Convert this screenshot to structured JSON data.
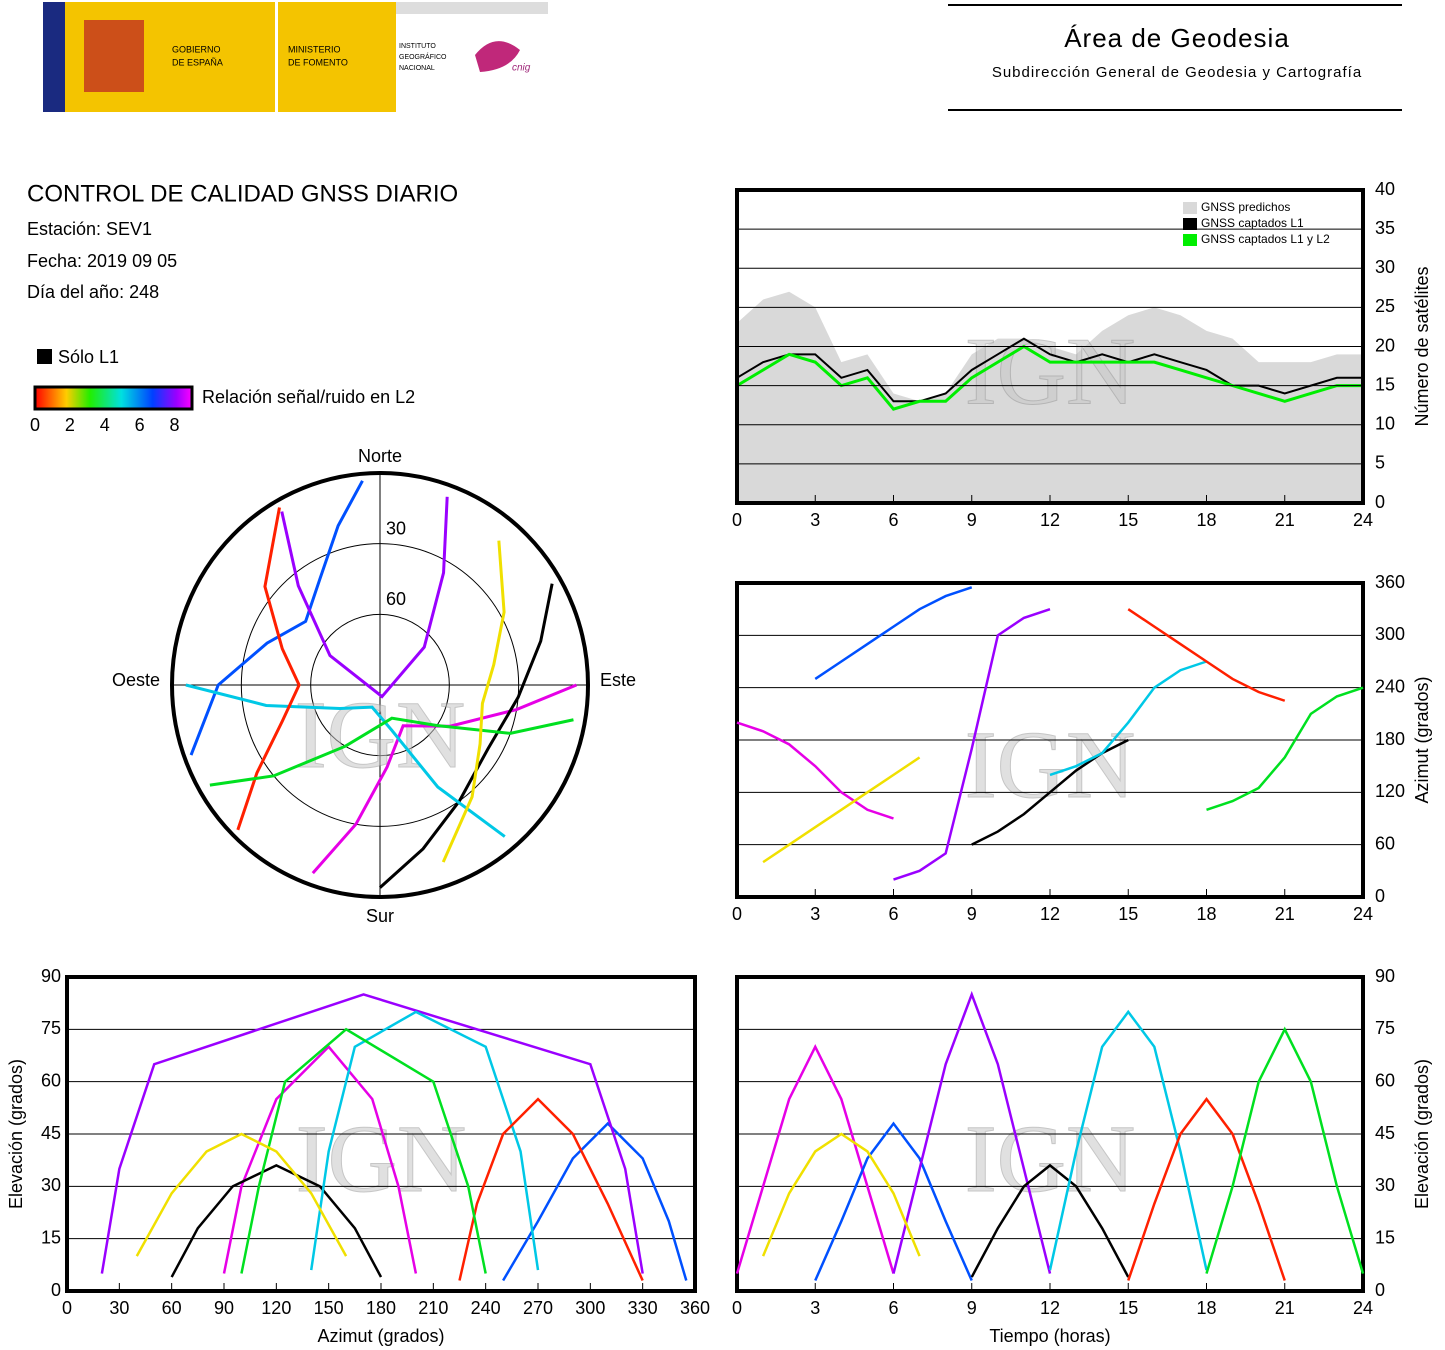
{
  "header": {
    "org_lines": [
      "GOBIERNO",
      "DE ESPAÑA",
      "MINISTERIO",
      "DE FOMENTO",
      "INSTITUTO",
      "GEOGRÁFICO",
      "NACIONAL",
      "cnig"
    ],
    "area_title": "Área de Geodesia",
    "area_subtitle": "Subdirección General de Geodesia y Cartografía"
  },
  "report": {
    "title": "CONTROL DE CALIDAD GNSS DIARIO",
    "station": "Estación: SEV1",
    "date": "Fecha: 2019 09 05",
    "doy": "Día del año: 248"
  },
  "legend": {
    "l1_only": "Sólo L1",
    "snr_label": "Relación señal/ruido en L2",
    "snr_range": [
      0,
      9
    ],
    "snr_ticks": [
      0,
      2,
      4,
      6,
      8
    ]
  },
  "tracks": [
    {
      "color": "#e600e6",
      "time": [
        0,
        1,
        2,
        3,
        4,
        5,
        6
      ],
      "azimuth": [
        200,
        190,
        175,
        150,
        120,
        100,
        90
      ],
      "elevation": [
        5,
        30,
        55,
        70,
        55,
        30,
        5
      ]
    },
    {
      "color": "#0050ff",
      "time": [
        3,
        4,
        5,
        6,
        7,
        8,
        9
      ],
      "azimuth": [
        250,
        270,
        290,
        310,
        330,
        345,
        355
      ],
      "elevation": [
        3,
        20,
        38,
        48,
        38,
        20,
        3
      ]
    },
    {
      "color": "#9a00ff",
      "time": [
        6,
        7,
        8,
        9,
        10,
        11,
        12
      ],
      "azimuth": [
        20,
        30,
        50,
        170,
        300,
        320,
        330
      ],
      "elevation": [
        5,
        35,
        65,
        85,
        65,
        35,
        5
      ]
    },
    {
      "color": "#000000",
      "time": [
        9,
        10,
        11,
        12,
        13,
        14,
        15
      ],
      "azimuth": [
        60,
        75,
        95,
        120,
        145,
        165,
        180
      ],
      "elevation": [
        4,
        18,
        30,
        36,
        30,
        18,
        4
      ]
    },
    {
      "color": "#00c8e6",
      "time": [
        12,
        13,
        14,
        15,
        16,
        17,
        18
      ],
      "azimuth": [
        140,
        150,
        165,
        200,
        240,
        260,
        270
      ],
      "elevation": [
        6,
        40,
        70,
        80,
        70,
        40,
        6
      ]
    },
    {
      "color": "#ff2000",
      "time": [
        15,
        16,
        17,
        18,
        19,
        20,
        21
      ],
      "azimuth": [
        330,
        310,
        290,
        270,
        250,
        235,
        225
      ],
      "elevation": [
        3,
        25,
        45,
        55,
        45,
        25,
        3
      ]
    },
    {
      "color": "#00e020",
      "time": [
        18,
        19,
        20,
        21,
        22,
        23,
        24
      ],
      "azimuth": [
        100,
        110,
        125,
        160,
        210,
        230,
        240
      ],
      "elevation": [
        5,
        30,
        60,
        75,
        60,
        30,
        5
      ]
    },
    {
      "color": "#f0e000",
      "time": [
        1,
        2,
        3,
        4,
        5,
        6,
        7
      ],
      "azimuth": [
        40,
        60,
        80,
        100,
        120,
        140,
        160
      ],
      "elevation": [
        10,
        28,
        40,
        45,
        40,
        28,
        10
      ]
    }
  ],
  "chart_data": [
    {
      "type": "polar",
      "labels": {
        "north": "Norte",
        "south": "Sur",
        "east": "Este",
        "west": "Oeste"
      },
      "rings": [
        30,
        60
      ],
      "watermark": "IGN"
    },
    {
      "type": "count",
      "x": [
        0,
        1,
        2,
        3,
        4,
        5,
        6,
        7,
        8,
        9,
        10,
        11,
        12,
        13,
        14,
        15,
        16,
        17,
        18,
        19,
        20,
        21,
        22,
        23,
        24
      ],
      "series": [
        {
          "name": "GNSS predichos",
          "color": "#d9d9d9",
          "values": [
            23,
            26,
            27,
            25,
            18,
            19,
            14,
            13,
            14,
            19,
            21,
            21,
            20,
            19,
            22,
            24,
            25,
            24,
            22,
            21,
            18,
            18,
            18,
            19,
            19
          ]
        },
        {
          "name": "GNSS captados L1",
          "color": "#000000",
          "values": [
            16,
            18,
            19,
            19,
            16,
            17,
            13,
            13,
            14,
            17,
            19,
            21,
            19,
            18,
            19,
            18,
            19,
            18,
            17,
            15,
            15,
            14,
            15,
            16,
            16
          ]
        },
        {
          "name": "GNSS captados L1 y L2",
          "color": "#00ee00",
          "values": [
            15,
            17,
            19,
            18,
            15,
            16,
            12,
            13,
            13,
            16,
            18,
            20,
            18,
            18,
            18,
            18,
            18,
            17,
            16,
            15,
            14,
            13,
            14,
            15,
            15
          ]
        }
      ],
      "xlim": [
        0,
        24
      ],
      "xticks": [
        0,
        3,
        6,
        9,
        12,
        15,
        18,
        21,
        24
      ],
      "ylim": [
        0,
        40
      ],
      "yticks": [
        0,
        5,
        10,
        15,
        20,
        25,
        30,
        35,
        40
      ],
      "ylabel": "Número de satélites",
      "y_axis_side": "right",
      "watermark": "IGN"
    },
    {
      "type": "track",
      "x_field": "time",
      "y_field": "azimuth",
      "xlim": [
        0,
        24
      ],
      "xticks": [
        0,
        3,
        6,
        9,
        12,
        15,
        18,
        21,
        24
      ],
      "ylim": [
        0,
        360
      ],
      "yticks": [
        0,
        60,
        120,
        180,
        240,
        300,
        360
      ],
      "ylabel": "Azimut (grados)",
      "y_axis_side": "right",
      "watermark": "IGN"
    },
    {
      "type": "track",
      "x_field": "azimuth",
      "y_field": "elevation",
      "xlim": [
        0,
        360
      ],
      "xticks": [
        0,
        30,
        60,
        90,
        120,
        150,
        180,
        210,
        240,
        270,
        300,
        330,
        360
      ],
      "ylim": [
        0,
        90
      ],
      "yticks": [
        0,
        15,
        30,
        45,
        60,
        75,
        90
      ],
      "xlabel": "Azimut (grados)",
      "ylabel": "Elevación (grados)",
      "y_axis_side": "left",
      "watermark": "IGN"
    },
    {
      "type": "track",
      "x_field": "time",
      "y_field": "elevation",
      "xlim": [
        0,
        24
      ],
      "xticks": [
        0,
        3,
        6,
        9,
        12,
        15,
        18,
        21,
        24
      ],
      "ylim": [
        0,
        90
      ],
      "yticks": [
        0,
        15,
        30,
        45,
        60,
        75,
        90
      ],
      "xlabel": "Tiempo (horas)",
      "ylabel": "Elevación (grados)",
      "y_axis_side": "right",
      "watermark": "IGN"
    }
  ]
}
